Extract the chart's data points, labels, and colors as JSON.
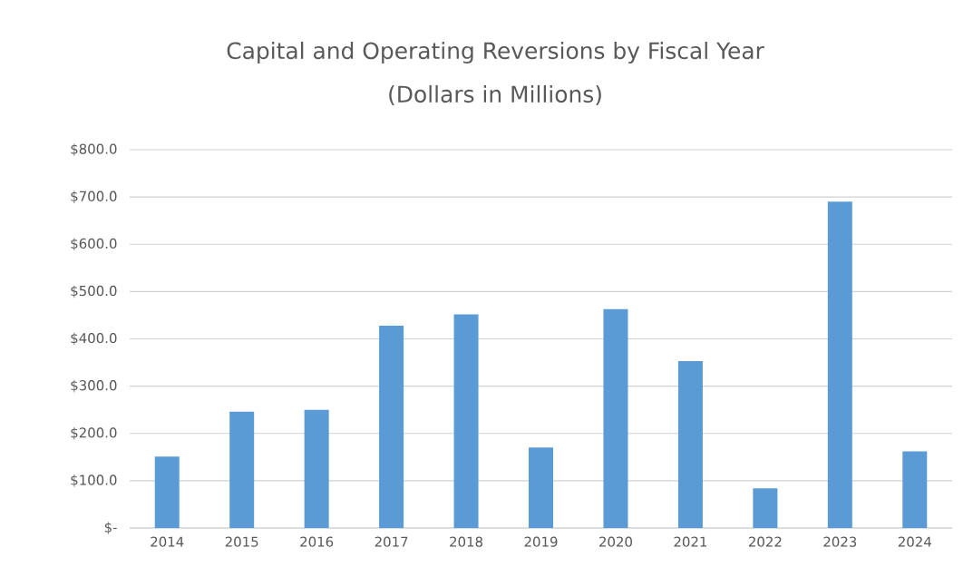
{
  "chart_data": {
    "type": "bar",
    "title": "Capital and Operating Reversions by Fiscal Year",
    "subtitle": "(Dollars in Millions)",
    "categories": [
      "2014",
      "2015",
      "2016",
      "2017",
      "2018",
      "2019",
      "2020",
      "2021",
      "2022",
      "2023",
      "2024"
    ],
    "values": [
      151,
      246,
      250,
      428,
      452,
      170,
      463,
      353,
      84,
      690,
      162
    ],
    "color": "#5b9bd5",
    "ylim": [
      0,
      800
    ],
    "yticks": [
      {
        "value": 0,
        "label": "$-"
      },
      {
        "value": 100,
        "label": "$100.0"
      },
      {
        "value": 200,
        "label": "$200.0"
      },
      {
        "value": 300,
        "label": "$300.0"
      },
      {
        "value": 400,
        "label": "$400.0"
      },
      {
        "value": 500,
        "label": "$500.0"
      },
      {
        "value": 600,
        "label": "$600.0"
      },
      {
        "value": 700,
        "label": "$700.0"
      },
      {
        "value": 800,
        "label": "$800.0"
      }
    ],
    "grid": "y"
  }
}
